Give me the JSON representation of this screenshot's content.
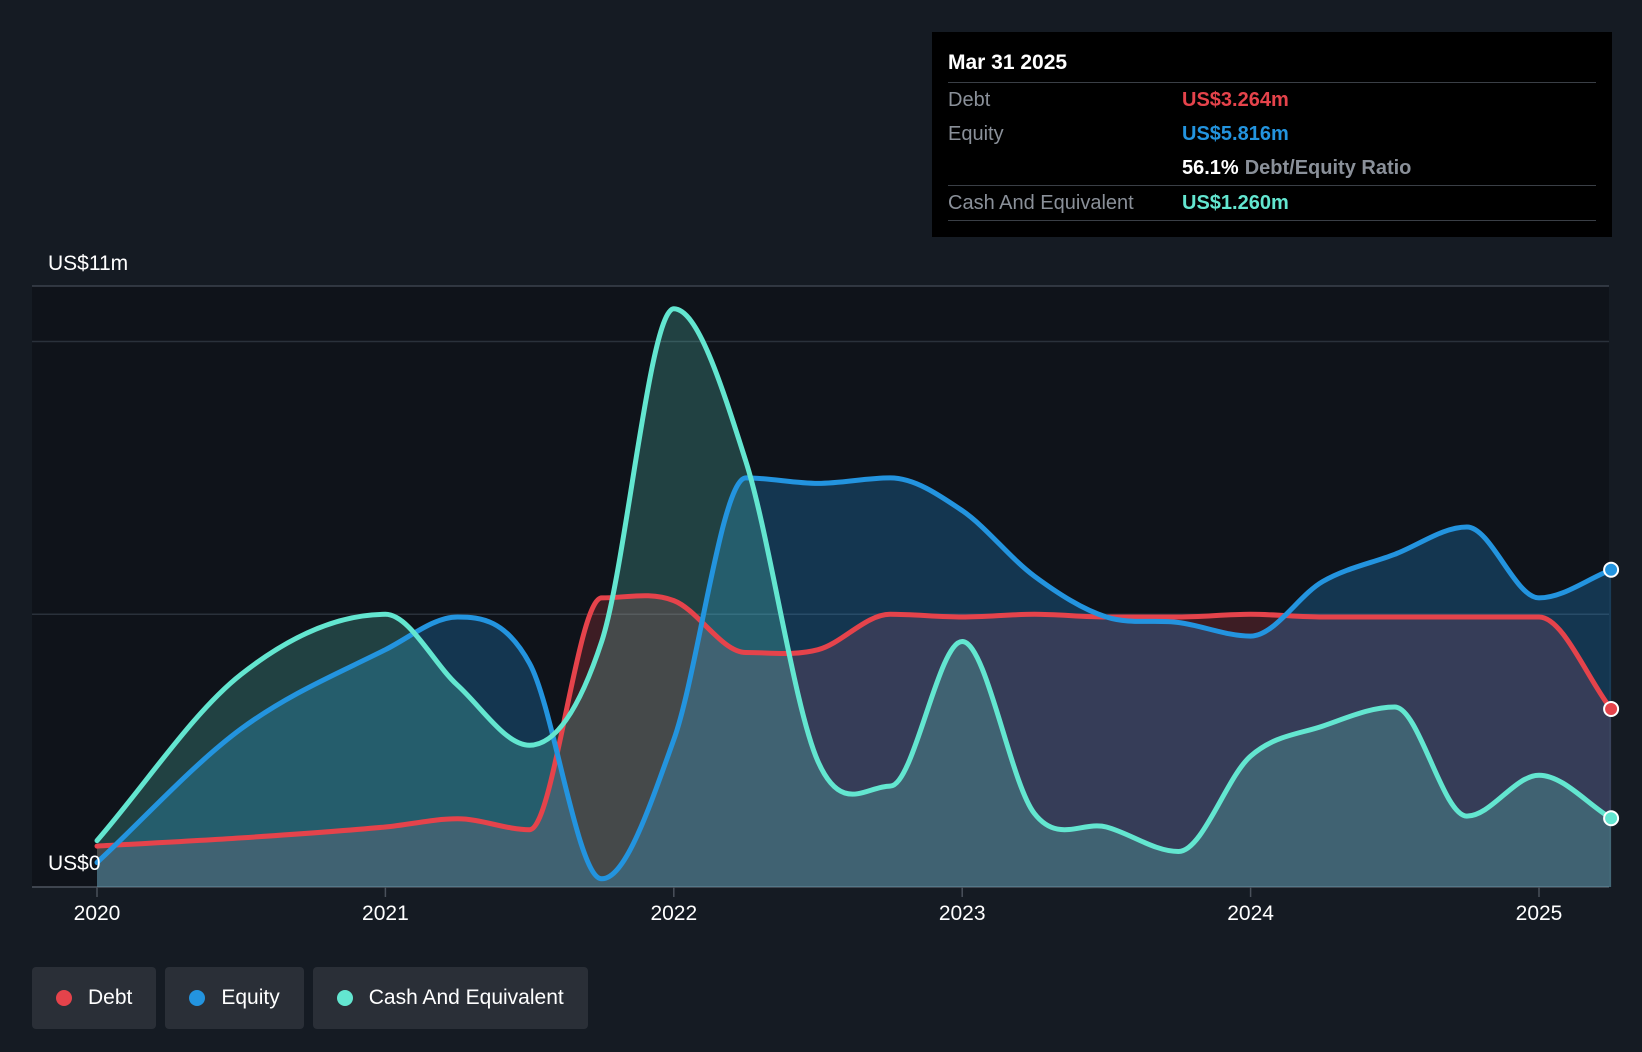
{
  "colors": {
    "debt": "#e5434b",
    "equity": "#2394df",
    "cash": "#63e6d0",
    "background": "#151b23",
    "past_shade": "#0f131a"
  },
  "tooltip": {
    "date": "Mar 31 2025",
    "debt_label": "Debt",
    "debt_value": "US$3.264m",
    "equity_label": "Equity",
    "equity_value": "US$5.816m",
    "ratio_value": "56.1%",
    "ratio_label": "Debt/Equity Ratio",
    "cash_label": "Cash And Equivalent",
    "cash_value": "US$1.260m"
  },
  "legend": {
    "debt": "Debt",
    "equity": "Equity",
    "cash": "Cash And Equivalent"
  },
  "chart_data": {
    "type": "area",
    "title": "",
    "xlabel": "",
    "ylabel": "",
    "y_top_label": "US$11m",
    "y_bottom_label": "US$0",
    "ylim": [
      0,
      11
    ],
    "xlim": [
      2019.78,
      2025.25
    ],
    "x_ticks": [
      2020,
      2021,
      2022,
      2023,
      2024,
      2025
    ],
    "x_tick_labels": [
      "2020",
      "2021",
      "2022",
      "2023",
      "2024",
      "2025"
    ],
    "gridlines": [
      0,
      5,
      10
    ],
    "series": [
      {
        "name": "Debt",
        "key": "debt",
        "points": [
          [
            2020.0,
            0.75
          ],
          [
            2020.5,
            0.9
          ],
          [
            2021.0,
            1.1
          ],
          [
            2021.25,
            1.25
          ],
          [
            2021.5,
            1.05
          ],
          [
            2021.75,
            5.3
          ],
          [
            2022.0,
            5.25
          ],
          [
            2022.25,
            4.3
          ],
          [
            2022.5,
            4.35
          ],
          [
            2022.75,
            5.0
          ],
          [
            2023.0,
            4.95
          ],
          [
            2023.25,
            5.0
          ],
          [
            2023.5,
            4.95
          ],
          [
            2023.75,
            4.95
          ],
          [
            2024.0,
            5.0
          ],
          [
            2024.25,
            4.95
          ],
          [
            2024.5,
            4.95
          ],
          [
            2024.75,
            4.95
          ],
          [
            2025.0,
            4.95
          ],
          [
            2025.25,
            3.264
          ]
        ]
      },
      {
        "name": "Equity",
        "key": "equity",
        "points": [
          [
            2020.0,
            0.45
          ],
          [
            2020.5,
            2.9
          ],
          [
            2021.0,
            4.35
          ],
          [
            2021.25,
            4.95
          ],
          [
            2021.5,
            4.1
          ],
          [
            2021.75,
            0.15
          ],
          [
            2022.0,
            2.7
          ],
          [
            2022.25,
            7.5
          ],
          [
            2022.5,
            7.4
          ],
          [
            2022.75,
            7.5
          ],
          [
            2023.0,
            6.9
          ],
          [
            2023.25,
            5.7
          ],
          [
            2023.5,
            4.95
          ],
          [
            2023.75,
            4.85
          ],
          [
            2024.0,
            4.6
          ],
          [
            2024.25,
            5.6
          ],
          [
            2024.5,
            6.1
          ],
          [
            2024.75,
            6.6
          ],
          [
            2025.0,
            5.3
          ],
          [
            2025.25,
            5.816
          ]
        ]
      },
      {
        "name": "Cash And Equivalent",
        "key": "cash",
        "points": [
          [
            2020.0,
            0.85
          ],
          [
            2020.5,
            3.9
          ],
          [
            2021.0,
            5.0
          ],
          [
            2021.25,
            3.7
          ],
          [
            2021.5,
            2.6
          ],
          [
            2021.75,
            4.5
          ],
          [
            2022.0,
            10.6
          ],
          [
            2022.25,
            7.8
          ],
          [
            2022.5,
            2.3
          ],
          [
            2022.75,
            1.85
          ],
          [
            2023.0,
            4.5
          ],
          [
            2023.25,
            1.35
          ],
          [
            2023.5,
            1.1
          ],
          [
            2023.75,
            0.65
          ],
          [
            2024.0,
            2.4
          ],
          [
            2024.25,
            2.95
          ],
          [
            2024.5,
            3.3
          ],
          [
            2024.75,
            1.3
          ],
          [
            2025.0,
            2.05
          ],
          [
            2025.25,
            1.26
          ]
        ]
      }
    ]
  }
}
